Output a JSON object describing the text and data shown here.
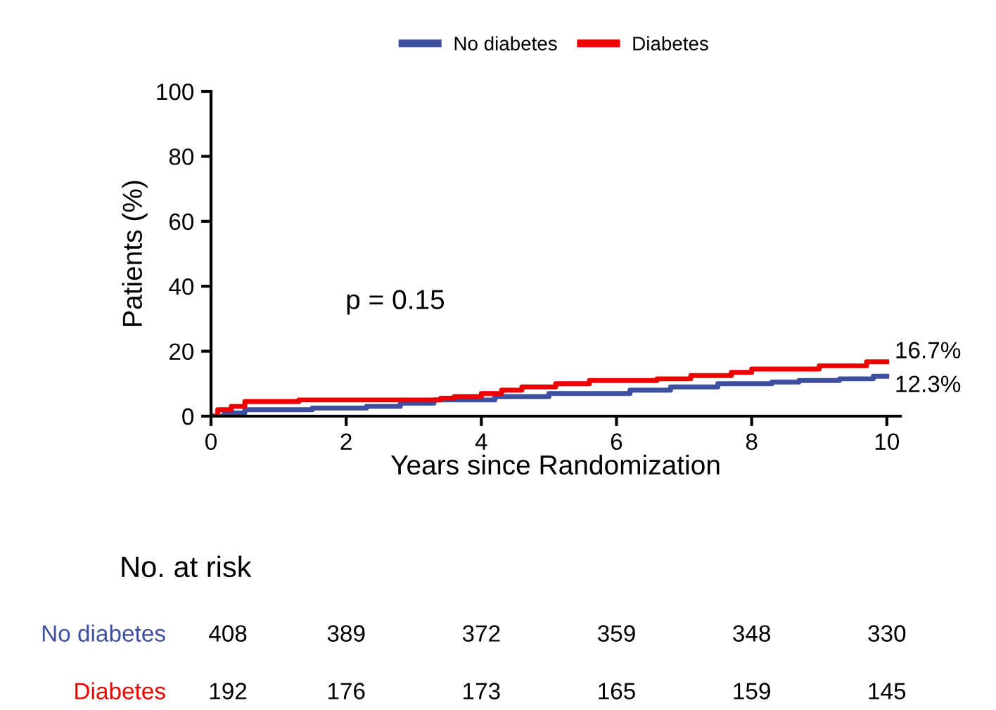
{
  "chart_data": {
    "type": "step",
    "xlabel": "Years since Randomization",
    "ylabel": "Patients (%)",
    "xlim": [
      0,
      10.2
    ],
    "xticks": [
      0,
      2,
      4,
      6,
      8,
      10
    ],
    "ylim": [
      0,
      100
    ],
    "yticks": [
      0,
      20,
      40,
      60,
      80,
      100
    ],
    "grid": false,
    "legend": "top",
    "line_style": "solid",
    "marker": "none",
    "series": [
      {
        "name": "No diabetes",
        "color": "#3f4fa0",
        "x": [
          0,
          0.2,
          0.5,
          1.5,
          2.3,
          2.8,
          3.3,
          4.2,
          5.0,
          6.2,
          6.8,
          7.5,
          8.3,
          8.7,
          9.3,
          9.8,
          10
        ],
        "values": [
          0,
          1,
          2,
          2.5,
          3,
          4,
          5,
          6,
          7,
          8,
          9,
          10,
          10.5,
          11,
          11.5,
          12.3,
          12.3
        ]
      },
      {
        "name": "Diabetes",
        "color": "#ee0000",
        "x": [
          0,
          0.1,
          0.3,
          0.5,
          1.3,
          3.4,
          3.6,
          4.0,
          4.3,
          4.6,
          5.1,
          5.6,
          6.6,
          7.1,
          7.7,
          8.0,
          9.0,
          9.7,
          10
        ],
        "values": [
          0,
          2,
          3,
          4.5,
          5,
          5.5,
          6,
          7,
          8,
          9,
          10,
          11,
          11.5,
          12.5,
          13.5,
          14.5,
          15.5,
          16.7,
          16.7
        ]
      }
    ],
    "annotations": [
      "p = 0.15",
      {
        "text": "16.7%",
        "x": 10,
        "y": 16.7
      },
      {
        "text": "12.3%",
        "x": 10,
        "y": 12.3
      },
      "No. at risk",
      "408",
      "389",
      "372",
      "359",
      "348",
      "330",
      "192",
      "176",
      "173",
      "165",
      "159",
      "145"
    ]
  }
}
